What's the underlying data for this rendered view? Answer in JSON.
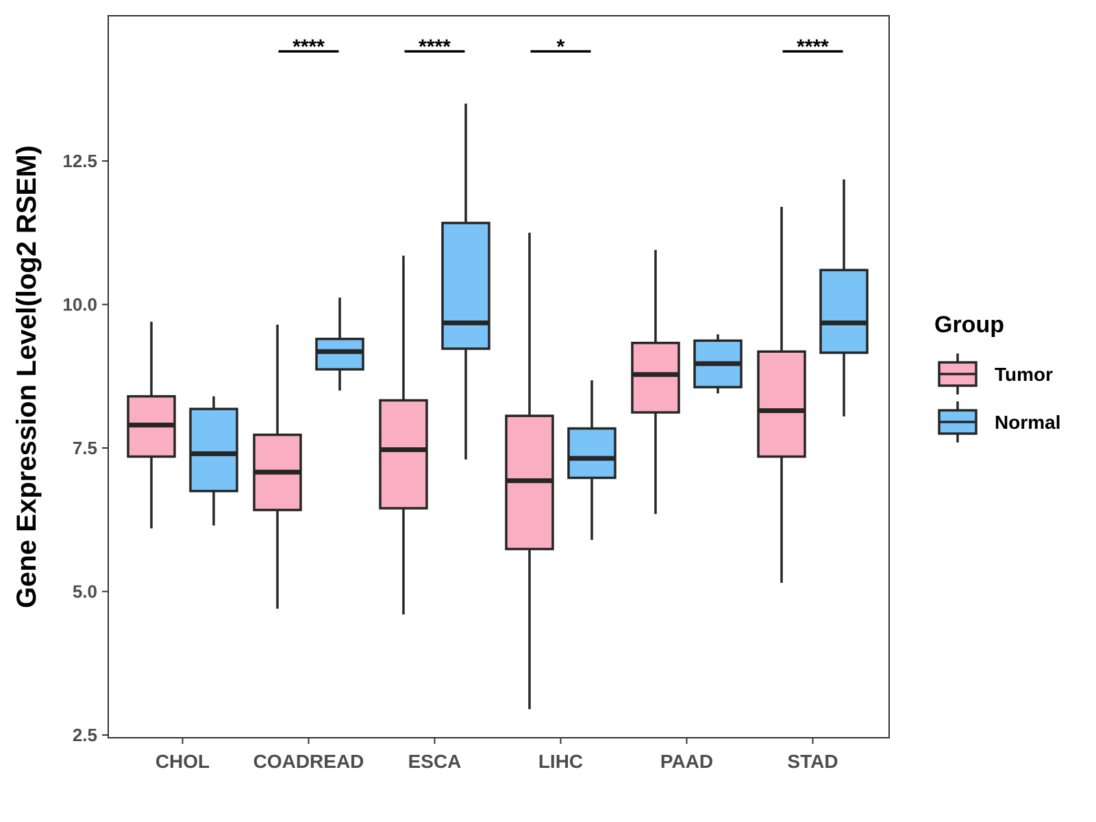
{
  "chart_data": {
    "type": "box",
    "ylabel": "Gene Expression Level(log2 RSEM)",
    "xlabel": "",
    "ylim": [
      2.4,
      15.0
    ],
    "yticks": [
      2.5,
      5.0,
      7.5,
      10.0,
      12.5
    ],
    "ytick_labels": [
      "2.5",
      "5.0",
      "7.5",
      "10.0",
      "12.5"
    ],
    "categories": [
      "CHOL",
      "COADREAD",
      "ESCA",
      "LIHC",
      "PAAD",
      "STAD"
    ],
    "series": [
      {
        "name": "Tumor",
        "color": "#f9afc1",
        "boxes": [
          {
            "min": 6.1,
            "q1": 7.35,
            "median": 7.9,
            "q3": 8.4,
            "max": 9.7
          },
          {
            "min": 4.7,
            "q1": 6.42,
            "median": 7.08,
            "q3": 7.73,
            "max": 9.65
          },
          {
            "min": 4.6,
            "q1": 6.45,
            "median": 7.47,
            "q3": 8.33,
            "max": 10.85
          },
          {
            "min": 2.95,
            "q1": 5.74,
            "median": 6.93,
            "q3": 8.06,
            "max": 11.25
          },
          {
            "min": 6.35,
            "q1": 8.12,
            "median": 8.78,
            "q3": 9.33,
            "max": 10.95
          },
          {
            "min": 5.15,
            "q1": 7.35,
            "median": 8.15,
            "q3": 9.18,
            "max": 11.7
          }
        ]
      },
      {
        "name": "Normal",
        "color": "#79c3f7",
        "boxes": [
          {
            "min": 6.15,
            "q1": 6.75,
            "median": 7.4,
            "q3": 8.18,
            "max": 8.4
          },
          {
            "min": 8.5,
            "q1": 8.87,
            "median": 9.18,
            "q3": 9.4,
            "max": 10.12
          },
          {
            "min": 7.3,
            "q1": 9.23,
            "median": 9.68,
            "q3": 11.42,
            "max": 13.5
          },
          {
            "min": 5.9,
            "q1": 6.98,
            "median": 7.32,
            "q3": 7.84,
            "max": 8.68
          },
          {
            "min": 8.45,
            "q1": 8.56,
            "median": 8.97,
            "q3": 9.37,
            "max": 9.48
          },
          {
            "min": 8.05,
            "q1": 9.16,
            "median": 9.68,
            "q3": 10.6,
            "max": 12.18
          }
        ]
      }
    ],
    "significance": [
      {
        "category": "COADREAD",
        "label": "****"
      },
      {
        "category": "ESCA",
        "label": "****"
      },
      {
        "category": "LIHC",
        "label": "*"
      },
      {
        "category": "STAD",
        "label": "****"
      }
    ],
    "legend": {
      "title": "Group",
      "position": "right",
      "items": [
        {
          "label": "Tumor",
          "color": "#f9afc1"
        },
        {
          "label": "Normal",
          "color": "#79c3f7"
        }
      ]
    }
  }
}
